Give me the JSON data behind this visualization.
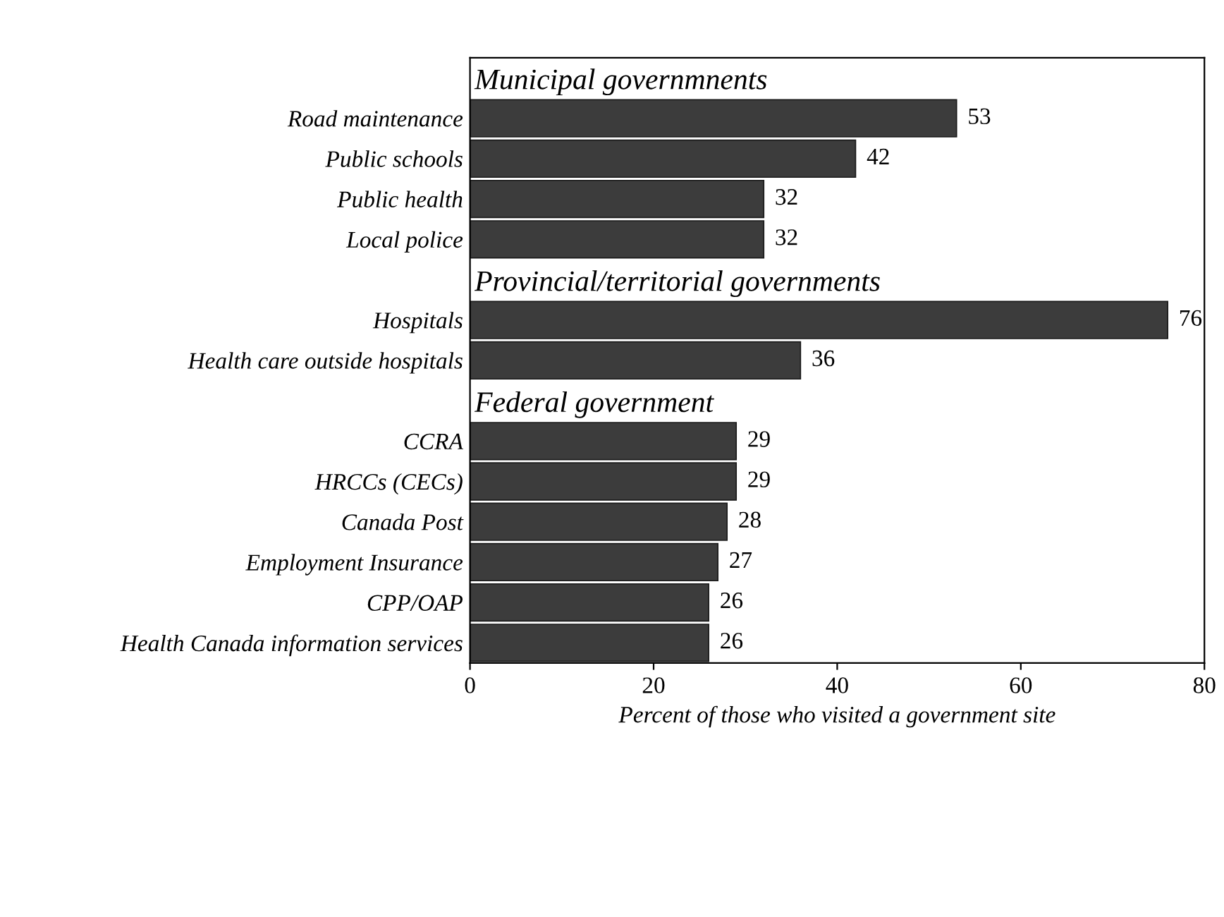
{
  "chart_data": {
    "type": "bar",
    "orientation": "horizontal",
    "categories": [
      null,
      "Road maintenance",
      "Public schools",
      "Public health",
      "Local police",
      null,
      "Hospitals",
      "Health care outside hospitals",
      null,
      "CCRA",
      "HRCCs (CECs)",
      "Canada Post",
      "Employment Insurance",
      "CPP/OAP",
      "Health Canada information services"
    ],
    "values": [
      null,
      53,
      42,
      32,
      32,
      null,
      76,
      36,
      null,
      29,
      29,
      28,
      27,
      26,
      26
    ],
    "color": "#3c3c3c",
    "xlim": [
      0,
      80
    ],
    "xticks": [
      0,
      20,
      40,
      60,
      80
    ],
    "xlabel": "Percent of those who visited a government site",
    "annotations": [
      "Municipal governmnents",
      "Provincial/territorial governments",
      "Federal government"
    ],
    "data_labels": true,
    "grid": false
  }
}
